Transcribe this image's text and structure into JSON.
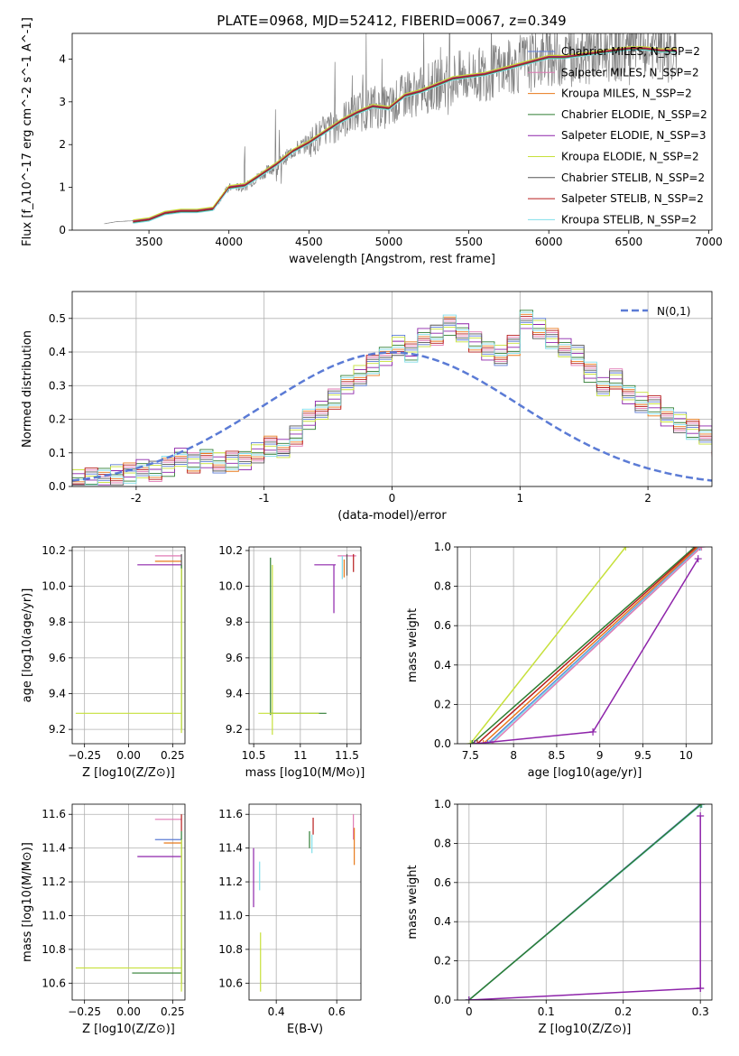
{
  "figure": {
    "title": "PLATE=0968, MJD=52412, FIBERID=0067, z=0.349"
  },
  "chart_data": [
    {
      "id": "spectrum",
      "type": "line",
      "xlabel": "wavelength [Angstrom, rest frame]",
      "ylabel": "Flux [f_λ10^-17 erg cm^-2 s^-1 A^-1]",
      "xlim": [
        3020,
        7020
      ],
      "ylim": [
        0,
        4.6
      ],
      "xticks": [
        3500,
        4000,
        4500,
        5000,
        5500,
        6000,
        6500,
        7000
      ],
      "yticks": [
        0,
        1,
        2,
        3,
        4
      ],
      "grid": false,
      "legend_position": "top-right",
      "observed": {
        "color": "#808080",
        "x": [
          3220,
          3300,
          3400,
          3500,
          3600,
          3700,
          3800,
          3900,
          4000,
          4100,
          4200,
          4300,
          4400,
          4500,
          4600,
          4700,
          4800,
          4900,
          5000,
          5100,
          5200,
          5300,
          5400,
          5500,
          5600,
          5700,
          5800,
          5900,
          6000,
          6100,
          6200,
          6300,
          6400,
          6500,
          6600,
          6700,
          6800
        ],
        "y": [
          0.15,
          0.2,
          0.22,
          0.25,
          0.4,
          0.45,
          0.45,
          0.5,
          1.0,
          1.0,
          1.3,
          1.5,
          1.85,
          2.05,
          2.3,
          2.55,
          2.75,
          2.9,
          2.85,
          3.15,
          3.25,
          3.4,
          3.55,
          3.6,
          3.65,
          3.75,
          3.85,
          3.95,
          4.05,
          4.05,
          4.1,
          4.15,
          4.2,
          4.25,
          4.25,
          4.2,
          4.2
        ]
      },
      "model_x": [
        3400,
        3500,
        3600,
        3700,
        3800,
        3900,
        4000,
        4100,
        4200,
        4300,
        4400,
        4500,
        4600,
        4700,
        4800,
        4900,
        5000,
        5100,
        5200,
        5300,
        5400,
        5500,
        5600,
        5700,
        5800,
        5900,
        6000,
        6100,
        6200,
        6300,
        6400,
        6500,
        6600,
        6700,
        6800
      ],
      "model_y": [
        0.2,
        0.25,
        0.4,
        0.45,
        0.45,
        0.5,
        1.0,
        1.05,
        1.3,
        1.55,
        1.85,
        2.05,
        2.3,
        2.55,
        2.75,
        2.9,
        2.85,
        3.15,
        3.25,
        3.4,
        3.55,
        3.6,
        3.65,
        3.75,
        3.85,
        3.95,
        4.05,
        4.05,
        4.1,
        4.15,
        4.2,
        4.25,
        4.25,
        4.2,
        4.2
      ],
      "series": [
        {
          "name": "Chabrier MILES, N_SSP=2",
          "color": "#5b7bd5",
          "offset": 0.02
        },
        {
          "name": "Salpeter MILES, N_SSP=2",
          "color": "#e07ab5",
          "offset": -0.02
        },
        {
          "name": "Kroupa MILES, N_SSP=2",
          "color": "#e87a1c",
          "offset": 0.03
        },
        {
          "name": "Chabrier ELODIE, N_SSP=2",
          "color": "#2e7d32",
          "offset": -0.03
        },
        {
          "name": "Salpeter ELODIE, N_SSP=3",
          "color": "#8e24aa",
          "offset": 0.01
        },
        {
          "name": "Kroupa ELODIE, N_SSP=2",
          "color": "#c6e03a",
          "offset": 0.04
        },
        {
          "name": "Chabrier STELIB, N_SSP=2",
          "color": "#555555",
          "offset": -0.01
        },
        {
          "name": "Salpeter STELIB, N_SSP=2",
          "color": "#b71c1c",
          "offset": 0.0
        },
        {
          "name": "Kroupa STELIB, N_SSP=2",
          "color": "#80deea",
          "offset": -0.04
        }
      ]
    },
    {
      "id": "residuals",
      "type": "bar",
      "xlabel": "(data-model)/error",
      "ylabel": "Normed distribution",
      "xlim": [
        -2.5,
        2.5
      ],
      "ylim": [
        0,
        0.58
      ],
      "xticks": [
        -2,
        -1,
        0,
        1,
        2
      ],
      "yticks": [
        0.0,
        0.1,
        0.2,
        0.3,
        0.4,
        0.5
      ],
      "grid": true,
      "legend_position": "top-right",
      "reference": {
        "name": "N(0,1)",
        "color": "#5b7bd5"
      },
      "bin_edges_start": -2.5,
      "bin_width": 0.1,
      "hist_values": [
        0.02,
        0.025,
        0.03,
        0.035,
        0.04,
        0.05,
        0.045,
        0.06,
        0.09,
        0.07,
        0.08,
        0.07,
        0.075,
        0.08,
        0.1,
        0.12,
        0.11,
        0.15,
        0.2,
        0.23,
        0.26,
        0.3,
        0.33,
        0.36,
        0.39,
        0.42,
        0.4,
        0.44,
        0.45,
        0.48,
        0.46,
        0.43,
        0.4,
        0.39,
        0.42,
        0.5,
        0.47,
        0.44,
        0.41,
        0.39,
        0.34,
        0.3,
        0.32,
        0.27,
        0.25,
        0.24,
        0.21,
        0.19,
        0.17,
        0.15,
        0.12,
        0.13,
        0.1,
        0.09,
        0.08,
        0.07,
        0.06,
        0.05,
        0.055,
        0.045,
        0.04,
        0.035,
        0.03,
        0.04,
        0.03
      ],
      "series_colors": [
        "#5b7bd5",
        "#e07ab5",
        "#e87a1c",
        "#2e7d32",
        "#8e24aa",
        "#c6e03a",
        "#555555",
        "#b71c1c",
        "#80deea"
      ]
    },
    {
      "id": "age-vs-Z",
      "type": "scatter",
      "xlabel": "Z [log10(Z/Z⊙)]",
      "ylabel": "age [log10(age/yr)]",
      "xlim": [
        -0.32,
        0.32
      ],
      "ylim": [
        9.12,
        10.22
      ],
      "xticks": [
        -0.25,
        0.0,
        0.25
      ],
      "xticklabels": [
        "−0.25",
        "0.00",
        "0.25"
      ],
      "yticks": [
        9.2,
        9.4,
        9.6,
        9.8,
        10.0,
        10.2
      ],
      "grid": true,
      "segments": [
        {
          "color": "#e07ab5",
          "x": [
            0.15,
            0.3
          ],
          "y": [
            10.17,
            10.17
          ]
        },
        {
          "color": "#e87a1c",
          "x": [
            0.15,
            0.3
          ],
          "y": [
            10.14,
            10.14
          ]
        },
        {
          "color": "#8e24aa",
          "x": [
            0.05,
            0.3
          ],
          "y": [
            10.12,
            10.12
          ]
        },
        {
          "color": "#c6e03a",
          "x": [
            -0.3,
            0.3
          ],
          "y": [
            9.29,
            9.29
          ]
        },
        {
          "color": "#555555",
          "x": [
            0.3,
            0.3
          ],
          "y": [
            10.0,
            10.18
          ]
        },
        {
          "color": "#2e7d32",
          "x": [
            0.3,
            0.3
          ],
          "y": [
            9.2,
            10.12
          ]
        },
        {
          "color": "#c6e03a",
          "x": [
            0.3,
            0.3
          ],
          "y": [
            9.18,
            10.1
          ]
        }
      ]
    },
    {
      "id": "age-vs-mass",
      "type": "scatter",
      "xlabel": "mass [log10(M/M⊙)]",
      "ylabel": "",
      "xlim": [
        10.45,
        11.65
      ],
      "ylim": [
        9.12,
        10.22
      ],
      "xticks": [
        10.5,
        11.0,
        11.5
      ],
      "yticks": [
        9.2,
        9.4,
        9.6,
        9.8,
        10.0,
        10.2
      ],
      "grid": true,
      "segments": [
        {
          "color": "#2e7d32",
          "x": [
            10.68,
            10.68
          ],
          "y": [
            9.28,
            10.16
          ]
        },
        {
          "color": "#c6e03a",
          "x": [
            10.7,
            10.7
          ],
          "y": [
            9.17,
            10.12
          ]
        },
        {
          "color": "#2e7d32",
          "x": [
            10.68,
            11.28
          ],
          "y": [
            9.29,
            9.29
          ]
        },
        {
          "color": "#c6e03a",
          "x": [
            10.55,
            11.2
          ],
          "y": [
            9.29,
            9.29
          ]
        },
        {
          "color": "#8e24aa",
          "x": [
            11.15,
            11.38
          ],
          "y": [
            10.12,
            10.12
          ]
        },
        {
          "color": "#8e24aa",
          "x": [
            11.36,
            11.36
          ],
          "y": [
            9.85,
            10.12
          ]
        },
        {
          "color": "#e07ab5",
          "x": [
            11.4,
            11.6
          ],
          "y": [
            10.17,
            10.17
          ]
        },
        {
          "color": "#e87a1c",
          "x": [
            11.47,
            11.47
          ],
          "y": [
            10.05,
            10.15
          ]
        },
        {
          "color": "#80deea",
          "x": [
            11.45,
            11.45
          ],
          "y": [
            10.04,
            10.17
          ]
        },
        {
          "color": "#555555",
          "x": [
            11.5,
            11.5
          ],
          "y": [
            10.06,
            10.18
          ]
        },
        {
          "color": "#b71c1c",
          "x": [
            11.57,
            11.57
          ],
          "y": [
            10.08,
            10.18
          ]
        }
      ]
    },
    {
      "id": "massweight-vs-age",
      "type": "line",
      "xlabel": "age [log10(age/yr)]",
      "ylabel": "mass weight",
      "xlim": [
        7.35,
        10.3
      ],
      "ylim": [
        0,
        1
      ],
      "xticks": [
        7.5,
        8.0,
        8.5,
        9.0,
        9.5,
        10.0
      ],
      "yticks": [
        0.0,
        0.2,
        0.4,
        0.6,
        0.8,
        1.0
      ],
      "grid": true,
      "lines": [
        {
          "color": "#c6e03a",
          "x": [
            7.5,
            9.3
          ],
          "y": [
            0.0,
            1.0
          ]
        },
        {
          "color": "#2e7d32",
          "x": [
            7.52,
            10.1
          ],
          "y": [
            0.0,
            1.0
          ]
        },
        {
          "color": "#b71c1c",
          "x": [
            7.58,
            10.12
          ],
          "y": [
            0.0,
            1.0
          ]
        },
        {
          "color": "#e87a1c",
          "x": [
            7.65,
            10.14
          ],
          "y": [
            0.0,
            1.0
          ]
        },
        {
          "color": "#5b7bd5",
          "x": [
            7.7,
            10.16
          ],
          "y": [
            0.0,
            1.0
          ]
        },
        {
          "color": "#80deea",
          "x": [
            7.72,
            10.17
          ],
          "y": [
            0.0,
            1.0
          ]
        },
        {
          "color": "#e07ab5",
          "x": [
            7.75,
            10.18
          ],
          "y": [
            0.0,
            1.0
          ]
        },
        {
          "color": "#8e24aa",
          "x": [
            7.55,
            8.92,
            10.14
          ],
          "y": [
            0.0,
            0.06,
            0.94
          ]
        }
      ]
    },
    {
      "id": "mass-vs-Z",
      "type": "scatter",
      "xlabel": "Z [log10(Z/Z⊙)]",
      "ylabel": "mass [log10(M/M⊙)]",
      "xlim": [
        -0.32,
        0.32
      ],
      "ylim": [
        10.5,
        11.66
      ],
      "xticks": [
        -0.25,
        0.0,
        0.25
      ],
      "xticklabels": [
        "−0.25",
        "0.00",
        "0.25"
      ],
      "yticks": [
        10.6,
        10.8,
        11.0,
        11.2,
        11.4,
        11.6
      ],
      "grid": true,
      "segments": [
        {
          "color": "#e07ab5",
          "x": [
            0.15,
            0.3
          ],
          "y": [
            11.57,
            11.57
          ]
        },
        {
          "color": "#5b7bd5",
          "x": [
            0.15,
            0.3
          ],
          "y": [
            11.45,
            11.45
          ]
        },
        {
          "color": "#e87a1c",
          "x": [
            0.2,
            0.3
          ],
          "y": [
            11.43,
            11.43
          ]
        },
        {
          "color": "#8e24aa",
          "x": [
            0.05,
            0.3
          ],
          "y": [
            11.35,
            11.35
          ]
        },
        {
          "color": "#c6e03a",
          "x": [
            -0.3,
            0.3
          ],
          "y": [
            10.69,
            10.69
          ]
        },
        {
          "color": "#2e7d32",
          "x": [
            0.02,
            0.3
          ],
          "y": [
            10.66,
            10.66
          ]
        },
        {
          "color": "#b71c1c",
          "x": [
            0.3,
            0.3
          ],
          "y": [
            11.5,
            11.6
          ]
        },
        {
          "color": "#2e7d32",
          "x": [
            0.3,
            0.3
          ],
          "y": [
            10.6,
            11.5
          ]
        },
        {
          "color": "#c6e03a",
          "x": [
            0.3,
            0.3
          ],
          "y": [
            10.55,
            11.45
          ]
        }
      ]
    },
    {
      "id": "mass-vs-ebv",
      "type": "scatter",
      "xlabel": "E(B-V)",
      "ylabel": "",
      "xlim": [
        0.31,
        0.68
      ],
      "ylim": [
        10.5,
        11.66
      ],
      "xticks": [
        0.4,
        0.6
      ],
      "yticks": [
        10.6,
        10.8,
        11.0,
        11.2,
        11.4,
        11.6
      ],
      "grid": true,
      "segments": [
        {
          "color": "#8e24aa",
          "x": [
            0.325,
            0.325
          ],
          "y": [
            11.05,
            11.4
          ]
        },
        {
          "color": "#80deea",
          "x": [
            0.345,
            0.345
          ],
          "y": [
            11.15,
            11.32
          ]
        },
        {
          "color": "#c6e03a",
          "x": [
            0.348,
            0.348
          ],
          "y": [
            10.55,
            10.9
          ]
        },
        {
          "color": "#2e7d32",
          "x": [
            0.51,
            0.51
          ],
          "y": [
            11.4,
            11.5
          ]
        },
        {
          "color": "#80deea",
          "x": [
            0.518,
            0.518
          ],
          "y": [
            11.37,
            11.48
          ]
        },
        {
          "color": "#b71c1c",
          "x": [
            0.522,
            0.522
          ],
          "y": [
            11.48,
            11.58
          ]
        },
        {
          "color": "#e07ab5",
          "x": [
            0.655,
            0.655
          ],
          "y": [
            11.45,
            11.6
          ]
        },
        {
          "color": "#e87a1c",
          "x": [
            0.658,
            0.658
          ],
          "y": [
            11.3,
            11.52
          ]
        }
      ]
    },
    {
      "id": "massweight-vs-Z",
      "type": "line",
      "xlabel": "Z [log10(Z/Z⊙)]",
      "ylabel": "mass weight",
      "xlim": [
        -0.015,
        0.315
      ],
      "ylim": [
        0,
        1
      ],
      "xticks": [
        0.0,
        0.1,
        0.2,
        0.3
      ],
      "yticks": [
        0.0,
        0.2,
        0.4,
        0.6,
        0.8,
        1.0
      ],
      "grid": true,
      "lines": [
        {
          "color": "#5b7bd5",
          "x": [
            0.0,
            0.3
          ],
          "y": [
            0.0,
            1.0
          ]
        },
        {
          "color": "#80deea",
          "x": [
            0.0,
            0.302
          ],
          "y": [
            0.0,
            1.0
          ]
        },
        {
          "color": "#2e7d32",
          "x": [
            0.0,
            0.301
          ],
          "y": [
            0.0,
            1.0
          ]
        },
        {
          "color": "#8e24aa",
          "x": [
            0.0,
            0.3,
            0.3,
            0.3
          ],
          "y": [
            0.0,
            0.06,
            0.06,
            0.94
          ]
        }
      ]
    }
  ]
}
